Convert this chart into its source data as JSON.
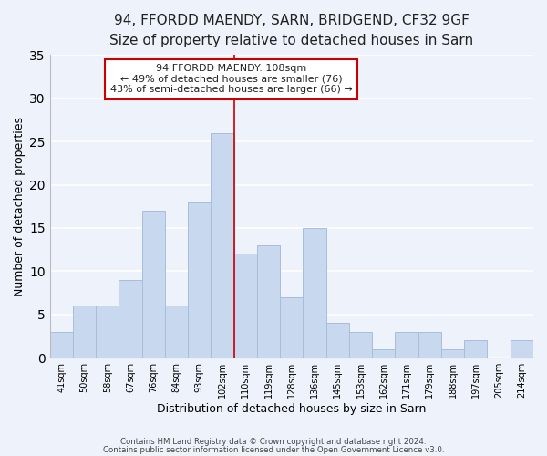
{
  "title1": "94, FFORDD MAENDY, SARN, BRIDGEND, CF32 9GF",
  "title2": "Size of property relative to detached houses in Sarn",
  "xlabel": "Distribution of detached houses by size in Sarn",
  "ylabel": "Number of detached properties",
  "categories": [
    "41sqm",
    "50sqm",
    "58sqm",
    "67sqm",
    "76sqm",
    "84sqm",
    "93sqm",
    "102sqm",
    "110sqm",
    "119sqm",
    "128sqm",
    "136sqm",
    "145sqm",
    "153sqm",
    "162sqm",
    "171sqm",
    "179sqm",
    "188sqm",
    "197sqm",
    "205sqm",
    "214sqm"
  ],
  "values": [
    3,
    6,
    6,
    9,
    17,
    6,
    18,
    26,
    12,
    13,
    7,
    15,
    4,
    3,
    1,
    3,
    3,
    1,
    2,
    0,
    2
  ],
  "bar_color": "#c8d9ef",
  "bar_edge_color": "#a8bdd8",
  "highlight_bar_index": 7,
  "highlight_line_color": "#cc0000",
  "ylim": [
    0,
    35
  ],
  "yticks": [
    0,
    5,
    10,
    15,
    20,
    25,
    30,
    35
  ],
  "annotation_title": "94 FFORDD MAENDY: 108sqm",
  "annotation_line1": "← 49% of detached houses are smaller (76)",
  "annotation_line2": "43% of semi-detached houses are larger (66) →",
  "annotation_box_color": "#ffffff",
  "annotation_box_edge_color": "#cc0000",
  "footer1": "Contains HM Land Registry data © Crown copyright and database right 2024.",
  "footer2": "Contains public sector information licensed under the Open Government Licence v3.0.",
  "background_color": "#eef3fb",
  "grid_color": "#ffffff",
  "title1_fontsize": 11,
  "title2_fontsize": 9.5,
  "xlabel_fontsize": 9,
  "ylabel_fontsize": 9
}
